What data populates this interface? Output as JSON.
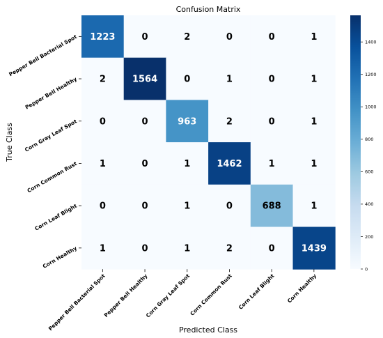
{
  "chart_data": {
    "type": "heatmap",
    "title": "Confusion Matrix",
    "xlabel": "Predicted Class",
    "ylabel": "True Class",
    "classes": [
      "Pepper Bell Bacterial Spot",
      "Pepper Bell Healthy",
      "Corn Gray Leaf Spot",
      "Corn Common Rust",
      "Corn Leaf Blight",
      "Corn Healthy"
    ],
    "matrix": [
      [
        1223,
        0,
        2,
        0,
        0,
        1
      ],
      [
        2,
        1564,
        0,
        1,
        0,
        1
      ],
      [
        0,
        0,
        963,
        2,
        0,
        1
      ],
      [
        1,
        0,
        1,
        1462,
        1,
        1
      ],
      [
        0,
        0,
        1,
        0,
        688,
        1
      ],
      [
        1,
        0,
        1,
        2,
        0,
        1439
      ]
    ],
    "colorbar": {
      "min": 0,
      "max": 1564,
      "ticks": [
        0,
        200,
        400,
        600,
        800,
        1000,
        1200,
        1400
      ],
      "colormap": "Blues"
    },
    "grid": false
  }
}
